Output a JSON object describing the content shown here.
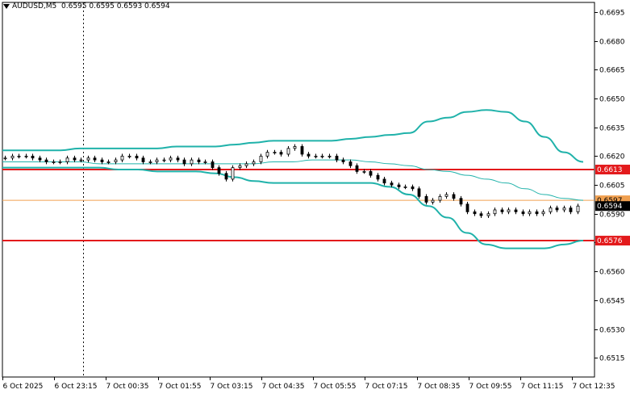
{
  "header": {
    "symbol": "AUDUSD,M5",
    "ohlc": "0.6595 0.6595 0.6593 0.6594"
  },
  "chart_data": {
    "type": "candlestick",
    "ylim": [
      0.6505,
      0.67
    ],
    "y_ticks": [
      "0.6695",
      "0.6680",
      "0.6665",
      "0.6650",
      "0.6635",
      "0.6620",
      "0.6605",
      "0.6590",
      "0.6575",
      "0.6560",
      "0.6545",
      "0.6530",
      "0.6515"
    ],
    "x_tick_labels": [
      "6 Oct 2025",
      "6 Oct 23:15",
      "7 Oct 00:35",
      "7 Oct 01:55",
      "7 Oct 03:15",
      "7 Oct 04:35",
      "7 Oct 05:55",
      "7 Oct 07:15",
      "7 Oct 08:35",
      "7 Oct 09:55",
      "7 Oct 11:15",
      "7 Oct 12:35"
    ],
    "horizontal_lines": [
      {
        "value": 0.6613,
        "label": "0.6613",
        "color": "#e31a1c"
      },
      {
        "value": 0.6576,
        "label": "0.6576",
        "color": "#e31a1c"
      }
    ],
    "current_price": {
      "value": 0.6594,
      "label": "0.6594"
    },
    "bid_line": {
      "value": 0.6597,
      "label": "0.6597",
      "color": "#f0a050"
    },
    "bollinger_upper": [
      0.6623,
      0.6623,
      0.6623,
      0.6623,
      0.6624,
      0.6624,
      0.6624,
      0.6624,
      0.6624,
      0.6625,
      0.6625,
      0.6625,
      0.6626,
      0.6627,
      0.6628,
      0.6628,
      0.6628,
      0.6628,
      0.6629,
      0.663,
      0.6631,
      0.6632,
      0.6638,
      0.664,
      0.6643,
      0.6644,
      0.6643,
      0.6638,
      0.663,
      0.6622,
      0.6617
    ],
    "bollinger_middle": [
      0.6617,
      0.6617,
      0.6617,
      0.6617,
      0.6617,
      0.6616,
      0.6616,
      0.6616,
      0.6616,
      0.6616,
      0.6616,
      0.6616,
      0.6616,
      0.6616,
      0.6617,
      0.6617,
      0.6618,
      0.6618,
      0.6618,
      0.6617,
      0.6616,
      0.6615,
      0.6613,
      0.6612,
      0.661,
      0.6608,
      0.6606,
      0.6603,
      0.66,
      0.6598,
      0.6597
    ],
    "bollinger_lower": [
      0.6614,
      0.6614,
      0.6614,
      0.6614,
      0.6614,
      0.6614,
      0.6613,
      0.6613,
      0.6612,
      0.6612,
      0.6612,
      0.6611,
      0.6609,
      0.6607,
      0.6606,
      0.6606,
      0.6606,
      0.6606,
      0.6606,
      0.6606,
      0.6604,
      0.66,
      0.6594,
      0.6588,
      0.658,
      0.6574,
      0.6572,
      0.6572,
      0.6572,
      0.6574,
      0.6576
    ],
    "close": [
      0.6619,
      0.662,
      0.662,
      0.662,
      0.6619,
      0.6618,
      0.6617,
      0.6617,
      0.6617,
      0.6619,
      0.6618,
      0.6618,
      0.6619,
      0.6618,
      0.6617,
      0.6617,
      0.6618,
      0.662,
      0.662,
      0.6619,
      0.6617,
      0.6617,
      0.6618,
      0.6618,
      0.6619,
      0.6618,
      0.6616,
      0.6618,
      0.6617,
      0.6617,
      0.6614,
      0.6611,
      0.6608,
      0.6614,
      0.6615,
      0.6616,
      0.6617,
      0.662,
      0.6622,
      0.6622,
      0.6621,
      0.6624,
      0.6625,
      0.6621,
      0.662,
      0.662,
      0.662,
      0.662,
      0.6618,
      0.6617,
      0.6615,
      0.6612,
      0.6612,
      0.661,
      0.6608,
      0.6606,
      0.6605,
      0.6604,
      0.6604,
      0.6603,
      0.6599,
      0.6596,
      0.6597,
      0.6599,
      0.66,
      0.6598,
      0.6595,
      0.6591,
      0.659,
      0.6589,
      0.659,
      0.6592,
      0.6591,
      0.6592,
      0.6591,
      0.659,
      0.6591,
      0.659,
      0.6591,
      0.6593,
      0.6592,
      0.6593,
      0.6591,
      0.6594
    ]
  }
}
